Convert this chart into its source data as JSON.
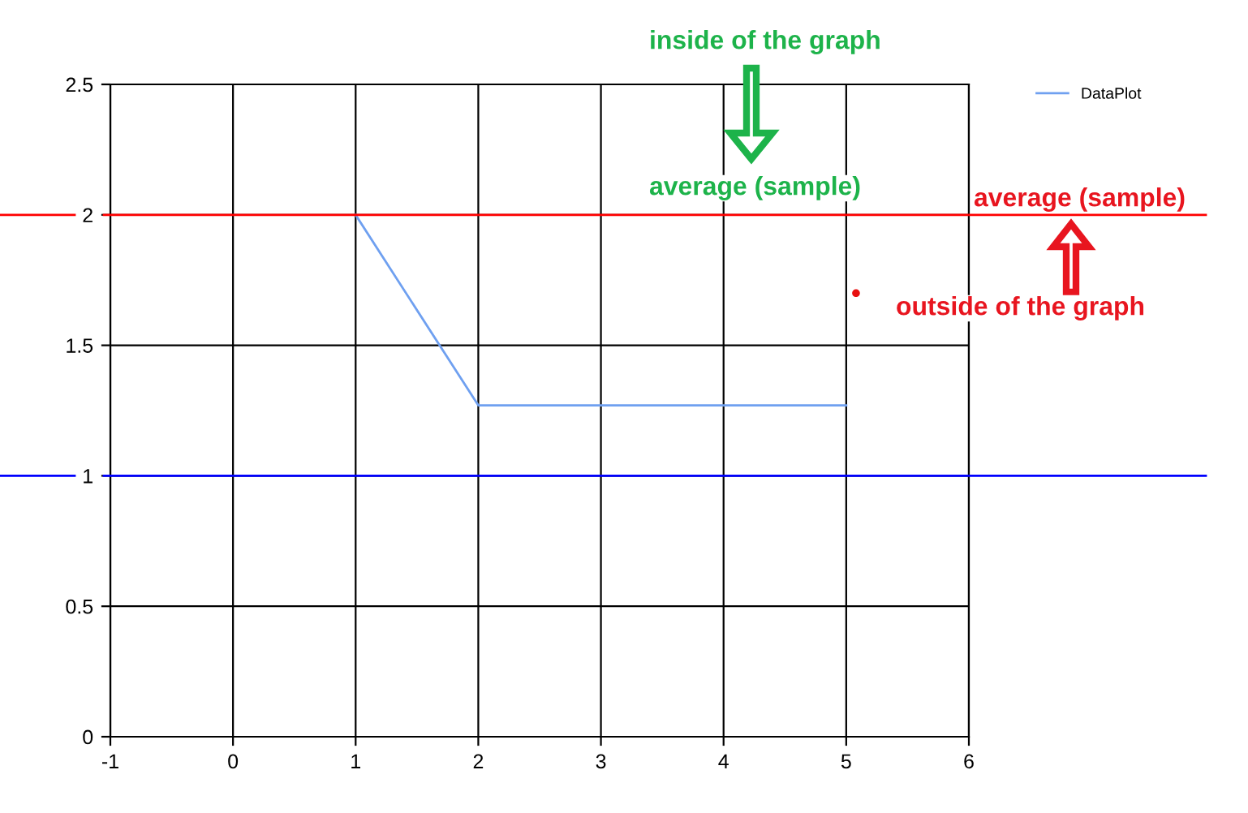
{
  "chart_data": {
    "type": "line",
    "series": [
      {
        "name": "DataPlot",
        "color": "#6fa0f0",
        "x": [
          1,
          2,
          5
        ],
        "values": [
          2,
          1.27,
          1.27
        ]
      },
      {
        "type": "scatter",
        "color": "#e81010",
        "x": [
          5.08
        ],
        "values": [
          1.7
        ]
      }
    ],
    "xlim": [
      -1,
      6
    ],
    "ylim": [
      0,
      2.5
    ],
    "xticks": [
      -1,
      0,
      1,
      2,
      3,
      4,
      5,
      6
    ],
    "yticks": [
      0,
      0.5,
      1,
      1.5,
      2,
      2.5
    ],
    "grid": true,
    "legend": "top right",
    "line_style": "solid",
    "ref_lines": [
      {
        "axis": "y",
        "value": 2,
        "color": "#ff0000"
      },
      {
        "axis": "y",
        "value": 1,
        "color": "#0000ff"
      }
    ],
    "annotations": [
      "inside of the graph",
      "average (sample)",
      "average (sample)",
      "outside of the graph"
    ]
  }
}
